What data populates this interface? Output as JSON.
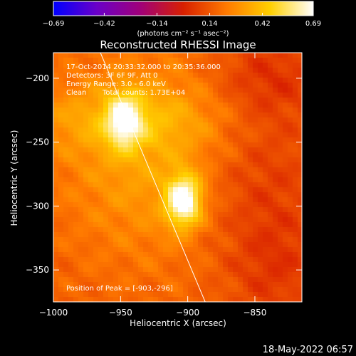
{
  "chart_data": {
    "type": "heatmap",
    "title": "Reconstructed RHESSI Image",
    "xlabel": "Heliocentric X (arcsec)",
    "ylabel": "Heliocentric Y (arcsec)",
    "xlim": [
      -1000,
      -815
    ],
    "ylim": [
      -375,
      -180
    ],
    "x_ticks": [
      -1000,
      -950,
      -900,
      -850
    ],
    "y_ticks": [
      -200,
      -250,
      -300,
      -350
    ],
    "x_tick_labels": [
      "−1000",
      "−950",
      "−900",
      "−850"
    ],
    "y_tick_labels": [
      "−200",
      "−250",
      "−300",
      "−350"
    ],
    "colorbar": {
      "min": -0.69,
      "max": 0.69,
      "ticks": [
        -0.69,
        -0.42,
        -0.14,
        0.14,
        0.42,
        0.69
      ],
      "tick_labels": [
        "−0.69",
        "−0.42",
        "−0.14",
        "0.14",
        "0.42",
        "0.69"
      ],
      "units_label": "(photons cm⁻² s⁻¹ asec⁻²)"
    },
    "sources": [
      {
        "x": -903,
        "y": -296,
        "peak": 0.69
      },
      {
        "x": -947,
        "y": -233,
        "peak": 0.55
      }
    ],
    "limb_line": [
      [
        -965,
        -180
      ],
      [
        -887,
        -375
      ]
    ],
    "annotations": {
      "time": "17-Oct-2014 20:33:32.000 to 20:35:36.000",
      "detectors": "Detectors: 3F 6F 9F, Att 0",
      "energy": "Energy Range: 3.0 - 6.0 keV",
      "clean": "Clean",
      "counts": "Total counts: 1.73E+04",
      "peak": "Position of Peak = [-903,-296]"
    },
    "footer_date": "18-May-2022 06:57"
  },
  "colors": {
    "colormap": [
      "#0000ff",
      "#6a00c8",
      "#a0007a",
      "#d82000",
      "#ff7a00",
      "#ffd000",
      "#ffffff"
    ]
  }
}
